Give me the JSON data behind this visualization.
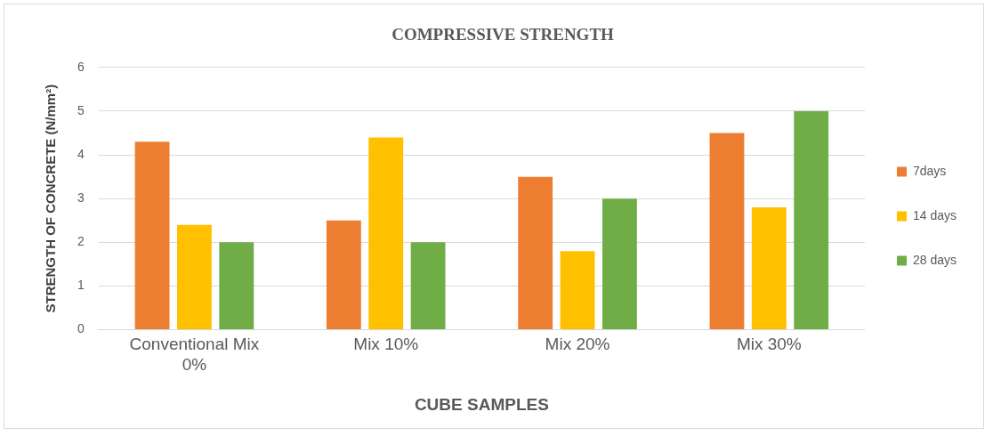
{
  "chart_data": {
    "type": "bar",
    "title": "COMPRESSIVE STRENGTH",
    "xlabel": "CUBE SAMPLES",
    "ylabel": "STRENGTH OF CONCRETE (N/mm²)",
    "categories": [
      "Conventional Mix 0%",
      "Mix 10%",
      "Mix 20%",
      "Mix 30%"
    ],
    "series": [
      {
        "name": "7days",
        "color": "#ed7d31",
        "values": [
          4.3,
          2.5,
          3.5,
          4.5
        ]
      },
      {
        "name": "14 days",
        "color": "#ffc000",
        "values": [
          2.4,
          4.4,
          1.8,
          2.8
        ]
      },
      {
        "name": "28 days",
        "color": "#70ad47",
        "values": [
          2.0,
          2.0,
          3.0,
          5.0
        ]
      }
    ],
    "ylim": [
      0,
      6
    ],
    "yticks": [
      0,
      1,
      2,
      3,
      4,
      5,
      6
    ],
    "grid": "y",
    "legend": "right"
  }
}
